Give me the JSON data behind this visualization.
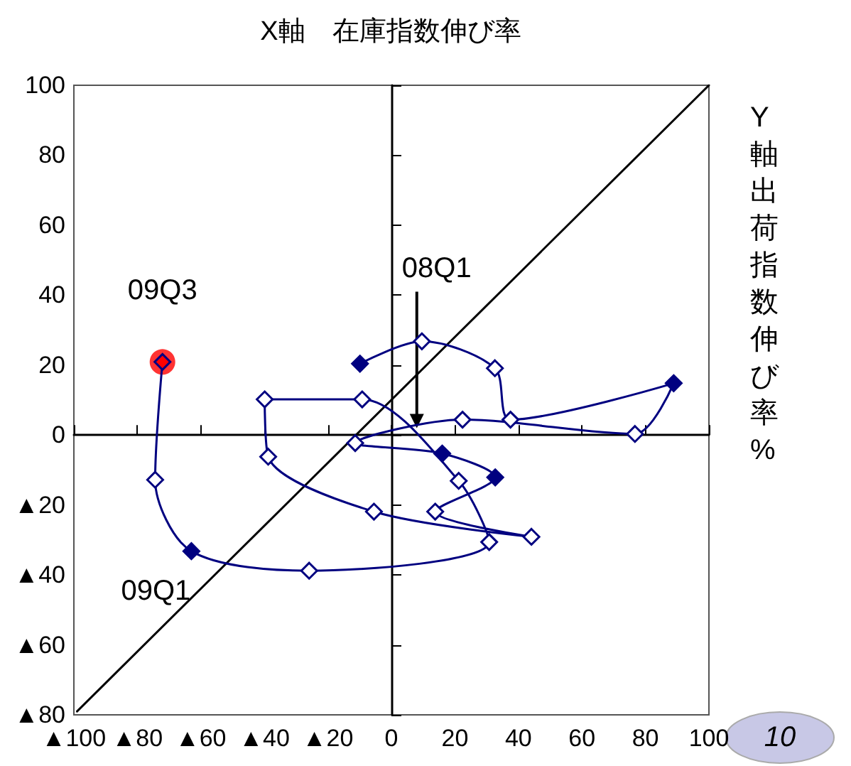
{
  "chart_data": {
    "type": "line",
    "title": "X軸　在庫指数伸び率",
    "ylabel": "Y軸出荷指数伸び率%",
    "xlim": [
      -100,
      100
    ],
    "ylim": [
      -80,
      100
    ],
    "xticks": [
      {
        "value": -100,
        "label": "▲100"
      },
      {
        "value": -80,
        "label": "▲80"
      },
      {
        "value": -60,
        "label": "▲60"
      },
      {
        "value": -40,
        "label": "▲40"
      },
      {
        "value": -20,
        "label": "▲20"
      },
      0,
      20,
      40,
      60,
      80,
      100
    ],
    "yticks": [
      {
        "value": -80,
        "label": "▲80"
      },
      {
        "value": -60,
        "label": "▲60"
      },
      {
        "value": -40,
        "label": "▲40"
      },
      {
        "value": -20,
        "label": "▲20"
      },
      0,
      20,
      40,
      60,
      80,
      100
    ],
    "marker": "diamond",
    "line_style": "solid",
    "series": [
      {
        "color": "#000080",
        "x": [
          -9.9,
          9.6,
          32.6,
          37.5,
          88.9,
          76.7,
          22.4,
          -11.4,
          16,
          32.7,
          13.8,
          44.1,
          -5.5,
          -38.8,
          -39.9,
          -9.2,
          21.2,
          30.8,
          -25.9,
          -63,
          -74.4,
          -72.1
        ],
        "values": [
          20.4,
          26.8,
          19.1,
          4.4,
          14.8,
          0.3,
          4.4,
          -2.3,
          -5.3,
          -12.1,
          -21.9,
          -29.1,
          -21.9,
          -6.2,
          10.2,
          10.2,
          -13.1,
          -30.6,
          -38.8,
          -33.2,
          -12.8,
          20.9
        ],
        "colors": [
          "#000080",
          "#ffffff",
          "#ffffff",
          "#ffffff",
          "#000080",
          "#ffffff",
          "#ffffff",
          "#ffffff",
          "#000080",
          "#000080",
          "#ffffff",
          "#ffffff",
          "#ffffff",
          "#ffffff",
          "#ffffff",
          "#ffffff",
          "#ffffff",
          "#ffffff",
          "#ffffff",
          "#000080",
          "#ffffff",
          "#ff0000"
        ]
      },
      {
        "type": "scatter",
        "marker": "circle",
        "color": "#ff0000",
        "x": [
          -72.1
        ],
        "values": [
          20.9
        ]
      },
      {
        "type": "line",
        "marker": "none",
        "color": "#000000",
        "x": [
          -99,
          100
        ],
        "values": [
          -79,
          100
        ]
      }
    ],
    "annotations": [
      {
        "text": "08Q1",
        "x": 8,
        "y": 2
      },
      {
        "text": "09Q3",
        "x": -72.1,
        "y": 20.9
      },
      {
        "text": "09Q1",
        "x": -63,
        "y": -33.2
      },
      "10"
    ]
  }
}
